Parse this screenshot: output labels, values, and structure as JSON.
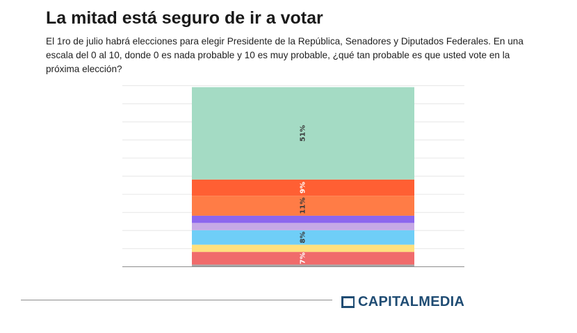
{
  "header": {
    "title": "La mitad está seguro de ir a votar",
    "subtitle": "El 1ro de julio habrá elecciones para elegir Presidente de la República, Senadores y Diputados Federales. En una escala del 0 al 10, donde 0 es nada probable y 10 es muy probable, ¿qué tan probable es que usted vote en la próxima elección?"
  },
  "footer": {
    "brand": "CAPITALMEDIA"
  },
  "colors": {
    "brand": "#1f4c73",
    "grid": "#e6e6e6",
    "axis": "#8c8c8c"
  },
  "chart_data": {
    "type": "bar",
    "stacked": true,
    "orientation": "vertical",
    "ylim": [
      0,
      100
    ],
    "grid": true,
    "legend": "none",
    "segments": [
      {
        "value": 1,
        "color": "#a6a6a6",
        "label": ""
      },
      {
        "value": 7,
        "color": "#f06b6b",
        "label": "7%"
      },
      {
        "value": 4,
        "color": "#ffe07e",
        "label": ""
      },
      {
        "value": 8,
        "color": "#6fcef7",
        "label": "8%"
      },
      {
        "value": 4,
        "color": "#c6a9e6",
        "label": ""
      },
      {
        "value": 4,
        "color": "#8c66ee",
        "label": ""
      },
      {
        "value": 11,
        "color": "#ff7c46",
        "label": "11%"
      },
      {
        "value": 9,
        "color": "#ff5f33",
        "label": "9%"
      },
      {
        "value": 51,
        "color": "#a4dbc4",
        "label": "51%"
      }
    ]
  }
}
